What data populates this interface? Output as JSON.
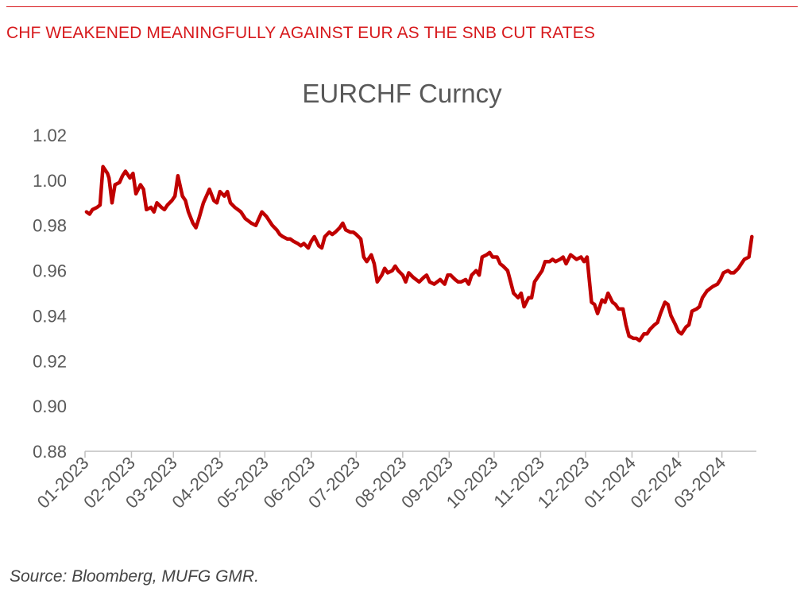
{
  "header": {
    "headline": "CHF WEAKENED MEANINGFULLY AGAINST EUR AS THE SNB CUT RATES"
  },
  "footer": {
    "source": "Source: Bloomberg, MUFG GMR."
  },
  "colors": {
    "accent": "#d7191c",
    "line": "#c00000",
    "text": "#595959",
    "axis": "#bfbfbf"
  },
  "chart_data": {
    "type": "line",
    "title": "EURCHF Curncy",
    "xlabel": "",
    "ylabel": "",
    "ylim": [
      0.88,
      1.02
    ],
    "xlim": [
      "2023-01-01",
      "2024-03-24"
    ],
    "yticks": [
      "0.88",
      "0.90",
      "0.92",
      "0.94",
      "0.96",
      "0.98",
      "1.00",
      "1.02"
    ],
    "xticks": [
      {
        "date": "2023-01-01",
        "label": "01-2023"
      },
      {
        "date": "2023-02-01",
        "label": "02-2023"
      },
      {
        "date": "2023-03-01",
        "label": "03-2023"
      },
      {
        "date": "2023-04-01",
        "label": "04-2023"
      },
      {
        "date": "2023-05-01",
        "label": "05-2023"
      },
      {
        "date": "2023-06-01",
        "label": "06-2023"
      },
      {
        "date": "2023-07-01",
        "label": "07-2023"
      },
      {
        "date": "2023-08-01",
        "label": "08-2023"
      },
      {
        "date": "2023-09-01",
        "label": "09-2023"
      },
      {
        "date": "2023-10-01",
        "label": "10-2023"
      },
      {
        "date": "2023-11-01",
        "label": "11-2023"
      },
      {
        "date": "2023-12-01",
        "label": "12-2023"
      },
      {
        "date": "2024-01-01",
        "label": "01-2024"
      },
      {
        "date": "2024-02-01",
        "label": "02-2024"
      },
      {
        "date": "2024-03-01",
        "label": "03-2024"
      }
    ],
    "grid": false,
    "legend": "none",
    "series": [
      {
        "color": "#c00000",
        "x": [
          "2023-01-02",
          "2023-01-04",
          "2023-01-06",
          "2023-01-09",
          "2023-01-11",
          "2023-01-13",
          "2023-01-16",
          "2023-01-17",
          "2023-01-19",
          "2023-01-21",
          "2023-01-24",
          "2023-01-26",
          "2023-01-28",
          "2023-01-31",
          "2023-02-02",
          "2023-02-04",
          "2023-02-07",
          "2023-02-09",
          "2023-02-11",
          "2023-02-14",
          "2023-02-16",
          "2023-02-18",
          "2023-02-21",
          "2023-02-23",
          "2023-02-25",
          "2023-02-28",
          "2023-03-02",
          "2023-03-04",
          "2023-03-07",
          "2023-03-09",
          "2023-03-11",
          "2023-03-14",
          "2023-03-16",
          "2023-03-18",
          "2023-03-21",
          "2023-03-23",
          "2023-03-25",
          "2023-03-28",
          "2023-03-30",
          "2023-04-01",
          "2023-04-04",
          "2023-04-06",
          "2023-04-08",
          "2023-04-11",
          "2023-04-13",
          "2023-04-15",
          "2023-04-18",
          "2023-04-20",
          "2023-04-22",
          "2023-04-25",
          "2023-04-27",
          "2023-04-29",
          "2023-05-02",
          "2023-05-04",
          "2023-05-06",
          "2023-05-09",
          "2023-05-11",
          "2023-05-13",
          "2023-05-16",
          "2023-05-18",
          "2023-05-20",
          "2023-05-23",
          "2023-05-25",
          "2023-05-27",
          "2023-05-30",
          "2023-06-01",
          "2023-06-03",
          "2023-06-06",
          "2023-06-08",
          "2023-06-10",
          "2023-06-13",
          "2023-06-15",
          "2023-06-17",
          "2023-06-20",
          "2023-06-22",
          "2023-06-24",
          "2023-06-27",
          "2023-06-29",
          "2023-07-01",
          "2023-07-04",
          "2023-07-06",
          "2023-07-08",
          "2023-07-11",
          "2023-07-13",
          "2023-07-15",
          "2023-07-18",
          "2023-07-20",
          "2023-07-22",
          "2023-07-25",
          "2023-07-27",
          "2023-07-29",
          "2023-08-01",
          "2023-08-03",
          "2023-08-05",
          "2023-08-08",
          "2023-08-10",
          "2023-08-12",
          "2023-08-15",
          "2023-08-17",
          "2023-08-19",
          "2023-08-22",
          "2023-08-24",
          "2023-08-26",
          "2023-08-29",
          "2023-08-31",
          "2023-09-02",
          "2023-09-05",
          "2023-09-07",
          "2023-09-09",
          "2023-09-12",
          "2023-09-14",
          "2023-09-16",
          "2023-09-19",
          "2023-09-21",
          "2023-09-23",
          "2023-09-26",
          "2023-09-28",
          "2023-09-30",
          "2023-10-03",
          "2023-10-05",
          "2023-10-07",
          "2023-10-10",
          "2023-10-12",
          "2023-10-14",
          "2023-10-17",
          "2023-10-19",
          "2023-10-21",
          "2023-10-24",
          "2023-10-26",
          "2023-10-28",
          "2023-10-31",
          "2023-11-02",
          "2023-11-04",
          "2023-11-07",
          "2023-11-09",
          "2023-11-11",
          "2023-11-14",
          "2023-11-16",
          "2023-11-18",
          "2023-11-21",
          "2023-11-23",
          "2023-11-25",
          "2023-11-28",
          "2023-11-30",
          "2023-12-02",
          "2023-12-05",
          "2023-12-07",
          "2023-12-09",
          "2023-12-12",
          "2023-12-14",
          "2023-12-16",
          "2023-12-19",
          "2023-12-21",
          "2023-12-23",
          "2023-12-26",
          "2023-12-28",
          "2023-12-30",
          "2024-01-02",
          "2024-01-04",
          "2024-01-06",
          "2024-01-09",
          "2024-01-11",
          "2024-01-13",
          "2024-01-16",
          "2024-01-18",
          "2024-01-20",
          "2024-01-23",
          "2024-01-25",
          "2024-01-27",
          "2024-01-30",
          "2024-02-01",
          "2024-02-03",
          "2024-02-06",
          "2024-02-08",
          "2024-02-10",
          "2024-02-13",
          "2024-02-15",
          "2024-02-17",
          "2024-02-20",
          "2024-02-22",
          "2024-02-24",
          "2024-02-27",
          "2024-02-29",
          "2024-03-02",
          "2024-03-05",
          "2024-03-07",
          "2024-03-09",
          "2024-03-12",
          "2024-03-14",
          "2024-03-16",
          "2024-03-19",
          "2024-03-21"
        ],
        "values": [
          0.986,
          0.985,
          0.987,
          0.988,
          0.989,
          1.006,
          1.003,
          1.001,
          0.99,
          0.998,
          0.999,
          1.002,
          1.004,
          1.001,
          1.003,
          0.994,
          0.998,
          0.996,
          0.987,
          0.988,
          0.986,
          0.99,
          0.988,
          0.987,
          0.989,
          0.991,
          0.993,
          1.002,
          0.993,
          0.991,
          0.986,
          0.981,
          0.979,
          0.983,
          0.99,
          0.993,
          0.996,
          0.991,
          0.99,
          0.995,
          0.993,
          0.995,
          0.99,
          0.988,
          0.987,
          0.986,
          0.983,
          0.982,
          0.981,
          0.98,
          0.983,
          0.986,
          0.984,
          0.982,
          0.98,
          0.978,
          0.976,
          0.975,
          0.974,
          0.974,
          0.973,
          0.972,
          0.971,
          0.972,
          0.97,
          0.973,
          0.975,
          0.971,
          0.97,
          0.975,
          0.977,
          0.976,
          0.977,
          0.979,
          0.981,
          0.978,
          0.977,
          0.977,
          0.976,
          0.974,
          0.966,
          0.964,
          0.967,
          0.963,
          0.955,
          0.958,
          0.961,
          0.959,
          0.96,
          0.962,
          0.96,
          0.958,
          0.955,
          0.959,
          0.957,
          0.956,
          0.955,
          0.957,
          0.958,
          0.955,
          0.954,
          0.955,
          0.956,
          0.954,
          0.958,
          0.958,
          0.956,
          0.955,
          0.955,
          0.956,
          0.954,
          0.958,
          0.96,
          0.958,
          0.966,
          0.967,
          0.968,
          0.966,
          0.966,
          0.963,
          0.962,
          0.96,
          0.955,
          0.95,
          0.948,
          0.95,
          0.944,
          0.948,
          0.948,
          0.955,
          0.958,
          0.96,
          0.964,
          0.964,
          0.965,
          0.964,
          0.965,
          0.966,
          0.963,
          0.967,
          0.966,
          0.965,
          0.966,
          0.964,
          0.966,
          0.946,
          0.945,
          0.941,
          0.947,
          0.946,
          0.95,
          0.946,
          0.945,
          0.943,
          0.943,
          0.936,
          0.931,
          0.93,
          0.93,
          0.929,
          0.932,
          0.932,
          0.934,
          0.936,
          0.937,
          0.941,
          0.946,
          0.945,
          0.94,
          0.936,
          0.933,
          0.932,
          0.935,
          0.936,
          0.942,
          0.943,
          0.944,
          0.948,
          0.951,
          0.952,
          0.953,
          0.954,
          0.956,
          0.959,
          0.96,
          0.959,
          0.959,
          0.961,
          0.963,
          0.965,
          0.966,
          0.975
        ]
      }
    ]
  }
}
